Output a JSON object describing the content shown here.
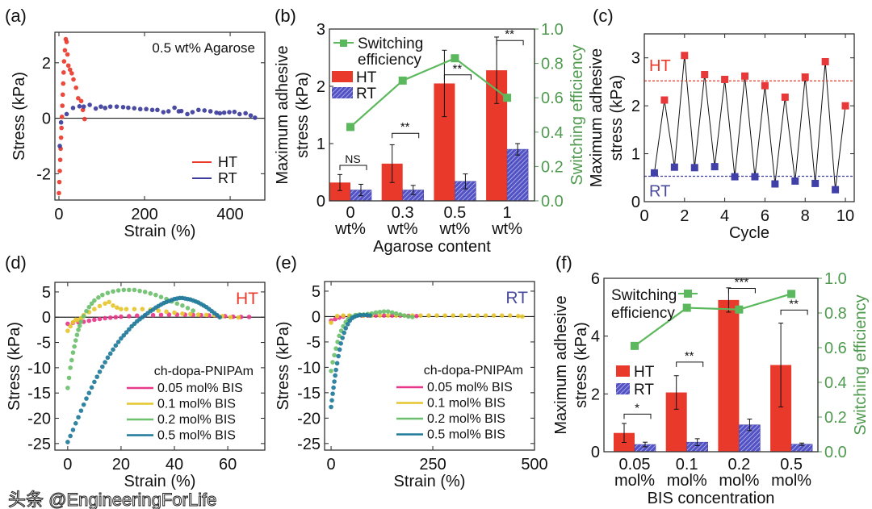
{
  "colors": {
    "HT": "#e8392a",
    "RT": "#3c3c9c",
    "switching": "#5cb85c",
    "switching_axis": "#4f9a4f",
    "pink": "#e8388a",
    "yellow": "#e6c52e",
    "green": "#6cbf6c",
    "teal": "#1f7a9a"
  },
  "watermark": "头条 @EngineeringForLife",
  "chart_data": [
    {
      "panel": "(a)",
      "type": "scatter",
      "annotation": "0.5 wt% Agarose",
      "xlabel": "Strain (%)",
      "ylabel": "Stress (kPa)",
      "xlim": [
        -9.4,
        481
      ],
      "ylim": [
        -2.95,
        3.1
      ],
      "xticks": [
        0,
        200,
        400
      ],
      "yticks": [
        -2,
        0,
        2
      ],
      "legend": "bottom-right",
      "series": [
        {
          "name": "HT",
          "color": "#e8392a",
          "x": [
            0,
            1,
            2,
            3,
            4,
            5,
            6,
            7,
            8,
            9,
            10,
            11,
            12,
            14,
            16,
            18,
            20,
            22,
            26,
            30,
            34,
            40,
            45,
            52,
            56,
            60
          ],
          "y": [
            -2.7,
            -2.3,
            -1.9,
            -1.5,
            -1.1,
            -0.7,
            -0.35,
            0.05,
            0.45,
            0.85,
            1.25,
            1.65,
            2.05,
            2.45,
            2.85,
            2.75,
            2.3,
            1.9,
            1.75,
            1.62,
            1.4,
            1.1,
            0.72,
            0.62,
            0.3,
            -0.03
          ]
        },
        {
          "name": "RT",
          "color": "#3c3c9c",
          "x": [
            2,
            5,
            18,
            33,
            48,
            58,
            72,
            86,
            98,
            108,
            120,
            135,
            150,
            162,
            176,
            190,
            204,
            218,
            230,
            244,
            256,
            270,
            280,
            286,
            300,
            312,
            326,
            340,
            354,
            368,
            376,
            386,
            398,
            410,
            422,
            436,
            448,
            458
          ],
          "y": [
            -1.0,
            -0.15,
            0.15,
            0.37,
            0.43,
            0.42,
            0.48,
            0.35,
            0.42,
            0.37,
            0.42,
            0.42,
            0.4,
            0.38,
            0.36,
            0.33,
            0.33,
            0.3,
            0.3,
            0.22,
            0.25,
            0.38,
            0.25,
            0.26,
            0.15,
            0.22,
            0.3,
            0.28,
            0.25,
            0.2,
            0.18,
            0.2,
            0.22,
            0.23,
            0.15,
            0.18,
            0.1,
            0.02
          ]
        }
      ]
    },
    {
      "panel": "(b)",
      "type": "bar",
      "categories": [
        [
          "0",
          "wt%"
        ],
        [
          "0.3",
          "wt%"
        ],
        [
          "0.5",
          "wt%"
        ],
        [
          "1",
          "wt%"
        ]
      ],
      "xlabel": "Agarose content",
      "ylabel": [
        "Maximum adhesive",
        "stress (kPa)"
      ],
      "y2label": "Switching efficiency",
      "ylim": [
        0,
        3
      ],
      "y2lim": [
        0,
        1.0
      ],
      "yticks": [
        0,
        1,
        2,
        3
      ],
      "y2ticks": [
        "0.0",
        "0.2",
        "0.4",
        "0.6",
        "0.8",
        "1.0"
      ],
      "legend": "top-left",
      "series": [
        {
          "name": "HT",
          "values": [
            0.32,
            0.65,
            2.05,
            2.28
          ],
          "errors": [
            0.14,
            0.33,
            0.58,
            0.58
          ]
        },
        {
          "name": "RT",
          "values": [
            0.19,
            0.19,
            0.34,
            0.9
          ],
          "errors": [
            0.1,
            0.08,
            0.13,
            0.1
          ]
        },
        {
          "name": [
            "Switching",
            "efficiency"
          ],
          "axis": "right",
          "values": [
            0.43,
            0.7,
            0.83,
            0.6
          ]
        }
      ],
      "significance": [
        "NS",
        "**",
        "**",
        "**"
      ]
    },
    {
      "panel": "(c)",
      "type": "line",
      "xlabel": "Cycle",
      "ylabel": [
        "Maximum adhesive",
        "stress (kPa)"
      ],
      "xlim": [
        0,
        10.44
      ],
      "ylim": [
        0,
        3.5
      ],
      "xticks": [
        0,
        2,
        4,
        6,
        8,
        10
      ],
      "yticks": [
        0,
        1,
        2,
        3
      ],
      "series": [
        {
          "name": "HT",
          "x": [
            1,
            2,
            3,
            4,
            5,
            6,
            7,
            8,
            9,
            10
          ],
          "y": [
            2.12,
            3.05,
            2.65,
            2.55,
            2.62,
            2.42,
            2.18,
            2.6,
            2.92,
            2.0
          ],
          "mean_line": 2.52
        },
        {
          "name": "RT",
          "x": [
            0.5,
            1.5,
            2.5,
            3.5,
            4.5,
            5.5,
            6.5,
            7.5,
            8.5,
            9.5
          ],
          "y": [
            0.6,
            0.72,
            0.71,
            0.73,
            0.52,
            0.52,
            0.37,
            0.43,
            0.38,
            0.25
          ],
          "mean_line": 0.53
        }
      ]
    },
    {
      "panel": "(d)",
      "type": "scatter",
      "annotation": "HT",
      "annotation_color": "#e8392a",
      "xlabel": "Strain (%)",
      "ylabel": "Stress (kPa)",
      "xlim": [
        -4.8,
        73.9
      ],
      "ylim": [
        -26.3,
        6.9
      ],
      "xticks": [
        0,
        20,
        40,
        60
      ],
      "yticks": [
        5,
        0,
        -5,
        -10,
        -15,
        -20,
        -25
      ],
      "legend_title": "ch-dopa-PNIPAm",
      "legend": "bottom-right",
      "series": [
        {
          "name": "0.05 mol% BIS",
          "color": "#e8388a",
          "x": [
            0,
            2,
            4,
            6,
            8,
            10,
            12,
            14,
            16,
            18,
            20,
            23,
            26,
            29,
            32,
            35,
            38,
            41,
            44,
            47,
            50,
            53,
            56,
            59,
            62,
            65,
            68
          ],
          "y": [
            -1.3,
            -1.1,
            -1.0,
            -0.9,
            -0.7,
            -0.5,
            -0.35,
            -0.2,
            -0.1,
            0,
            0.1,
            0.2,
            0.3,
            0.35,
            0.4,
            0.45,
            0.5,
            0.5,
            0.5,
            0.45,
            0.4,
            0.35,
            0.3,
            0.2,
            0.1,
            0.05,
            0.05
          ]
        },
        {
          "name": "0.1 mol% BIS",
          "color": "#e6c52e",
          "x": [
            0,
            1,
            2,
            3,
            4,
            5,
            6,
            8,
            10,
            12,
            14,
            15.5,
            17,
            18.5,
            20,
            22,
            25,
            28,
            31,
            34,
            37,
            40,
            43,
            46,
            49,
            52,
            55,
            58,
            61,
            64
          ],
          "y": [
            -2.7,
            -1.8,
            -1.0,
            -0.5,
            -0.6,
            -0.2,
            0.4,
            1.0,
            1.6,
            2.2,
            2.7,
            3.0,
            2.3,
            1.9,
            1.6,
            1.6,
            1.6,
            1.6,
            1.5,
            1.3,
            1.1,
            0.9,
            0.7,
            0.6,
            0.5,
            0.45,
            0.4,
            0.2,
            0,
            -0.05
          ]
        },
        {
          "name": "0.2 mol% BIS",
          "color": "#6cbf6c",
          "x": [
            0,
            0.5,
            1,
            1.5,
            2,
            2.5,
            3,
            3.5,
            4,
            4.5,
            5,
            6,
            7,
            8,
            9,
            10,
            11.5,
            13,
            15,
            17,
            19,
            21,
            23,
            25,
            27,
            29,
            31,
            33,
            35,
            37,
            39,
            41,
            43,
            45,
            47
          ],
          "y": [
            -14,
            -12,
            -10,
            -8.5,
            -7,
            -5.8,
            -4.6,
            -3.5,
            -2.5,
            -1.7,
            -0.9,
            0.2,
            1.2,
            2.0,
            2.7,
            3.3,
            3.9,
            4.4,
            4.8,
            5.1,
            5.3,
            5.4,
            5.4,
            5.4,
            5.2,
            5.0,
            4.7,
            4.4,
            4.0,
            3.6,
            3.1,
            2.7,
            2.3,
            1.8,
            1.3
          ]
        },
        {
          "name": "0.5 mol% BIS",
          "color": "#1f7a9a",
          "x": [
            0,
            1,
            2,
            3,
            4,
            5,
            6,
            7,
            8,
            9,
            10,
            11,
            12,
            13,
            14,
            15,
            16,
            17,
            18,
            19,
            20,
            21,
            22,
            23,
            24,
            25,
            26,
            27,
            28,
            29,
            30,
            31,
            32,
            33,
            34,
            35,
            36,
            37,
            38,
            39,
            40,
            41,
            42,
            43,
            44,
            45,
            46,
            47,
            48,
            49,
            50,
            51,
            52,
            53,
            54,
            55,
            56,
            57
          ],
          "y": [
            -24.7,
            -23.5,
            -22.3,
            -21,
            -19.8,
            -18.5,
            -17.3,
            -16.1,
            -15,
            -13.9,
            -12.8,
            -11.8,
            -10.8,
            -9.8,
            -8.9,
            -8.0,
            -7.2,
            -6.4,
            -5.6,
            -4.9,
            -4.2,
            -3.6,
            -3.0,
            -2.4,
            -1.8,
            -1.3,
            -0.8,
            -0.4,
            0,
            0.4,
            0.8,
            1.2,
            1.5,
            1.9,
            2.2,
            2.5,
            2.8,
            3.0,
            3.2,
            3.4,
            3.6,
            3.7,
            3.8,
            3.8,
            3.7,
            3.6,
            3.5,
            3.3,
            3.1,
            2.9,
            2.6,
            2.3,
            2.0,
            1.6,
            1.2,
            0.8,
            0.4,
            0
          ]
        }
      ]
    },
    {
      "panel": "(e)",
      "type": "scatter",
      "annotation": "RT",
      "annotation_color": "#4a4a9c",
      "xlabel": "Strain (%)",
      "ylabel": "Stress (kPa)",
      "xlim": [
        -16,
        500
      ],
      "ylim": [
        -26.3,
        6.9
      ],
      "xticks": [
        0,
        250,
        500
      ],
      "yticks": [
        5,
        0,
        -5,
        -10,
        -15,
        -20,
        -25
      ],
      "legend_title": "ch-dopa-PNIPAm",
      "legend": "bottom-right",
      "series": [
        {
          "name": "0.05 mol% BIS",
          "color": "#e8388a",
          "x": [
            0,
            10,
            20,
            30,
            45,
            60,
            75,
            90,
            110,
            130,
            150,
            170,
            190,
            210
          ],
          "y": [
            -0.8,
            -0.5,
            -0.2,
            0,
            0.1,
            0.1,
            0.2,
            0.2,
            0.2,
            0.2,
            0.2,
            0.2,
            0.15,
            0.1
          ]
        },
        {
          "name": "0.1 mol% BIS",
          "color": "#e6c52e",
          "x": [
            0,
            15,
            30,
            45,
            60,
            80,
            100,
            120,
            140,
            160,
            180,
            200,
            220,
            240,
            260,
            280,
            300,
            320,
            340,
            360,
            380,
            400,
            420,
            440,
            460,
            470
          ],
          "y": [
            -1.2,
            0.1,
            0.2,
            0.2,
            0.2,
            0.2,
            0.2,
            0.2,
            0.2,
            0.2,
            0.2,
            0.2,
            0.2,
            0.2,
            0.2,
            0.2,
            0.2,
            0.2,
            0.2,
            0.2,
            0.2,
            0.2,
            0.2,
            0.2,
            0.1,
            0
          ]
        },
        {
          "name": "0.2 mol% BIS",
          "color": "#6cbf6c",
          "x": [
            0,
            4,
            8,
            12,
            16,
            20,
            25,
            30,
            36,
            42,
            50,
            60,
            70,
            80,
            90,
            100,
            110,
            120,
            130,
            140,
            150,
            160,
            170,
            180,
            190,
            200
          ],
          "y": [
            -10.7,
            -9,
            -7.6,
            -6.3,
            -5,
            -3.8,
            -2.8,
            -1.9,
            -1.1,
            -0.5,
            0,
            0.3,
            0.4,
            0.4,
            0.5,
            0.6,
            0.8,
            0.9,
            1.0,
            1.0,
            0.8,
            0.6,
            0.4,
            0.2,
            0,
            -0.1
          ]
        },
        {
          "name": "0.5 mol% BIS",
          "color": "#1f7a9a",
          "x": [
            0,
            2,
            4,
            6,
            8,
            10,
            12,
            15,
            18,
            21,
            24,
            28,
            32,
            36,
            41,
            46,
            52,
            58,
            65,
            72,
            80,
            88,
            96
          ],
          "y": [
            -17.8,
            -16.5,
            -15.2,
            -14,
            -12.8,
            -11.6,
            -10.5,
            -9.2,
            -7.8,
            -6.5,
            -5.3,
            -4.2,
            -3.2,
            -2.3,
            -1.5,
            -0.8,
            -0.3,
            0,
            0.2,
            0.3,
            0.3,
            0.3,
            0.2
          ]
        }
      ]
    },
    {
      "panel": "(f)",
      "type": "bar",
      "categories": [
        [
          "0.05",
          "mol%"
        ],
        [
          "0.1",
          "mol%"
        ],
        [
          "0.2",
          "mol%"
        ],
        [
          "0.5",
          "mol%"
        ]
      ],
      "xlabel": "BIS concentration",
      "ylabel": [
        "Maximum adhesive",
        "stress (kPa)"
      ],
      "y2label": "Switching efficiency",
      "ylim": [
        0,
        6
      ],
      "y2lim": [
        0,
        1.0
      ],
      "yticks": [
        0,
        2,
        4,
        6
      ],
      "y2ticks": [
        "0.0",
        "0.2",
        "0.4",
        "0.6",
        "0.8",
        "1.0"
      ],
      "legend": "left",
      "series": [
        {
          "name": "HT",
          "values": [
            0.65,
            2.05,
            5.25,
            3.0
          ],
          "errors": [
            0.33,
            0.58,
            0.42,
            1.45
          ]
        },
        {
          "name": "RT",
          "values": [
            0.25,
            0.33,
            0.93,
            0.26
          ],
          "errors": [
            0.08,
            0.12,
            0.2,
            0.04
          ]
        },
        {
          "name": [
            "Switching",
            "efficiency"
          ],
          "axis": "right",
          "values": [
            0.61,
            0.83,
            0.82,
            0.91
          ]
        }
      ],
      "significance": [
        "*",
        "**",
        "***",
        "**"
      ]
    }
  ]
}
